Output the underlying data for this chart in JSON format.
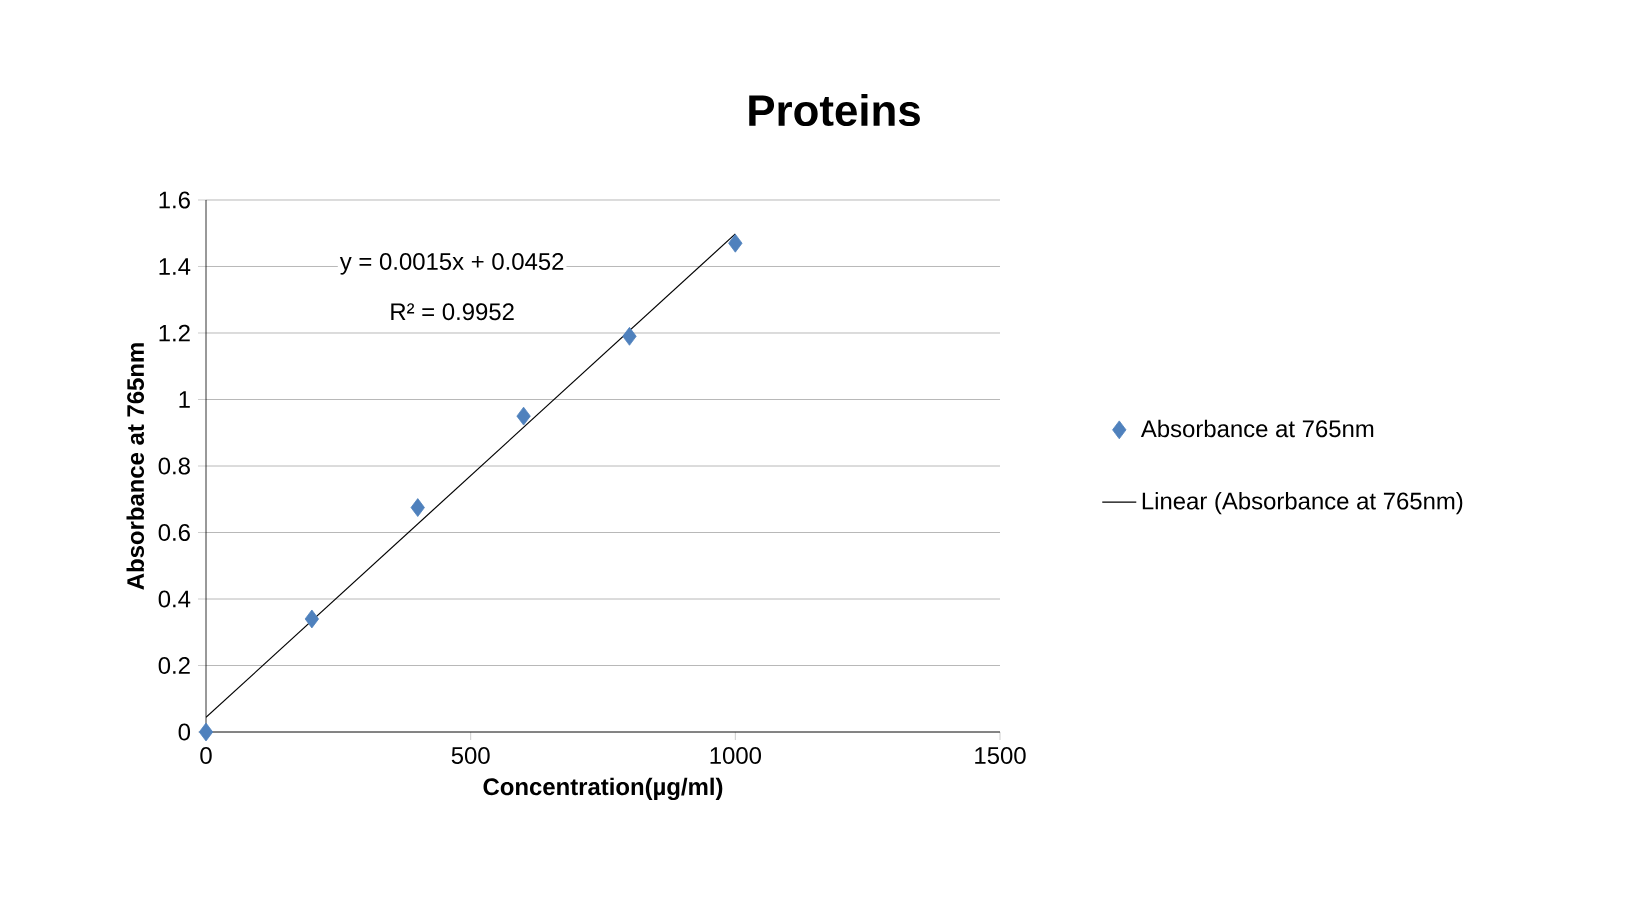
{
  "chart_data": {
    "type": "scatter",
    "title": "Proteins",
    "xlabel": "Concentration(µg/ml)",
    "ylabel": "Absorbance at 765nm",
    "series": [
      {
        "name": "Absorbance at 765nm",
        "marker": "diamond",
        "color": "#4f81bd",
        "x": [
          0,
          200,
          400,
          600,
          800,
          1000
        ],
        "values": [
          0,
          0.34,
          0.675,
          0.95,
          1.19,
          1.47
        ]
      },
      {
        "name": "Linear (Absorbance at 765nm)",
        "type": "line",
        "marker": "none",
        "color": "#000000",
        "x": [
          0,
          1000
        ],
        "values": [
          0.044,
          1.498
        ]
      }
    ],
    "xlim": [
      0,
      1500
    ],
    "xticks": [
      0,
      500,
      1000,
      1500
    ],
    "ylim": [
      0,
      1.6
    ],
    "yticks": [
      0,
      0.2,
      0.4,
      0.6,
      0.8,
      1,
      1.2,
      1.4,
      1.6
    ],
    "annotations": [
      "y = 0.0015x + 0.0452",
      "R² = 0.9952"
    ],
    "grid": "y",
    "legend": "right"
  }
}
